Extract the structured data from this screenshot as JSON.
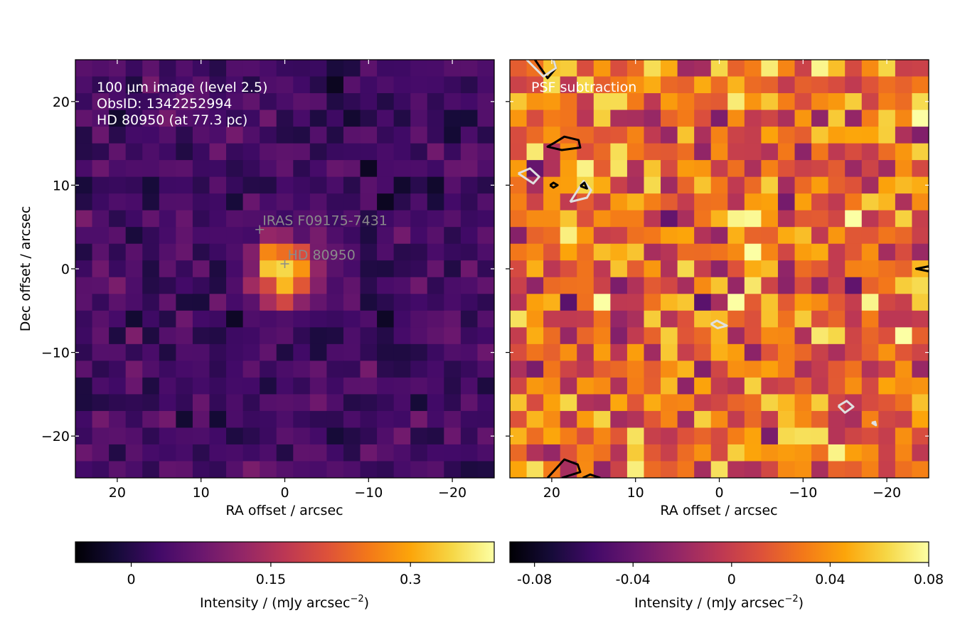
{
  "chart_data": [
    {
      "type": "heatmap",
      "panel": "left",
      "xlabel": "RA offset / arcsec",
      "ylabel": "Dec offset / arcsec",
      "xlim": [
        25,
        -25
      ],
      "ylim": [
        -25,
        25
      ],
      "xticks": [
        20,
        10,
        0,
        -10,
        -20
      ],
      "yticks": [
        20,
        10,
        0,
        -10,
        -20
      ],
      "grid": false,
      "pixel_size_arcsec": 2,
      "colormap": "inferno",
      "value_range": [
        -0.06,
        0.39
      ],
      "peak": {
        "x": 0,
        "y": 0,
        "value": 0.36
      },
      "annotations": [
        "100 µm image (level 2.5)",
        "ObsID: 1342252994",
        "HD 80950 (at 77.3 pc)"
      ],
      "markers": [
        {
          "label": "IRAS F09175-7431",
          "x": 3,
          "y": 4.7
        },
        {
          "label": "HD 80950",
          "x": 0,
          "y": 0.6
        }
      ],
      "colorbar": {
        "label_main": "Intensity / (mJy arcsec",
        "label_sup": "−2",
        "label_end": ")",
        "ticks": [
          0,
          0.15,
          0.3
        ],
        "tick_labels": [
          "0",
          "0.15",
          "0.3"
        ],
        "range": [
          -0.06,
          0.39
        ]
      }
    },
    {
      "type": "heatmap",
      "panel": "right",
      "xlabel": "RA offset / arcsec",
      "xlim": [
        25,
        -25
      ],
      "ylim": [
        -25,
        25
      ],
      "xticks": [
        20,
        10,
        0,
        -10,
        -20
      ],
      "grid": false,
      "pixel_size_arcsec": 2,
      "colormap": "inferno",
      "value_range": [
        -0.09,
        0.08
      ],
      "annotations": [
        "PSF subtraction"
      ],
      "contours": [
        {
          "color": "#000000",
          "points": [
            [
              22,
              25
            ],
            [
              20.5,
              22.8
            ],
            [
              19.5,
              24
            ],
            [
              19.8,
              25
            ]
          ]
        },
        {
          "color": "#e0e0e0",
          "points": [
            [
              23,
              25
            ],
            [
              21,
              23
            ],
            [
              19.5,
              24
            ],
            [
              19.8,
              25
            ]
          ]
        },
        {
          "color": "#000000",
          "points": [
            [
              19.8,
              15
            ],
            [
              18.5,
              15.8
            ],
            [
              16.8,
              15.4
            ],
            [
              16.6,
              14.5
            ],
            [
              18.8,
              14.2
            ],
            [
              20.5,
              14.6
            ],
            [
              19.8,
              15
            ]
          ]
        },
        {
          "color": "#e0e0e0",
          "points": [
            [
              24,
              11.4
            ],
            [
              22.6,
              12
            ],
            [
              21.5,
              11
            ],
            [
              22.2,
              10.2
            ],
            [
              24,
              11.4
            ]
          ]
        },
        {
          "color": "#000000",
          "points": [
            [
              20.2,
              10
            ],
            [
              19.8,
              10.3
            ],
            [
              19.3,
              10
            ],
            [
              19.8,
              9.7
            ],
            [
              20.2,
              10
            ]
          ]
        },
        {
          "color": "#e0e0e0",
          "points": [
            [
              17.8,
              8
            ],
            [
              16.2,
              10.5
            ],
            [
              15.3,
              9.4
            ],
            [
              15.8,
              8.5
            ],
            [
              17.8,
              8
            ]
          ]
        },
        {
          "color": "#000000",
          "points": [
            [
              16.6,
              9.9
            ],
            [
              16.1,
              10.3
            ],
            [
              15.8,
              9.6
            ],
            [
              16.6,
              9.9
            ]
          ]
        },
        {
          "color": "#000000",
          "points": [
            [
              -25,
              0.3
            ],
            [
              -23.5,
              0
            ],
            [
              -25,
              -0.3
            ]
          ]
        },
        {
          "color": "#e0e0e0",
          "points": [
            [
              1,
              -6.6
            ],
            [
              0.3,
              -6.2
            ],
            [
              -0.9,
              -6.8
            ],
            [
              0.2,
              -7.1
            ],
            [
              1,
              -6.6
            ]
          ]
        },
        {
          "color": "#e0e0e0",
          "points": [
            [
              -14.2,
              -16.4
            ],
            [
              -15.2,
              -15.8
            ],
            [
              -16,
              -16.5
            ],
            [
              -15,
              -17.2
            ],
            [
              -14.2,
              -16.4
            ]
          ]
        },
        {
          "color": "#e0e0e0",
          "points": [
            [
              -18.2,
              -18.4
            ],
            [
              -18.6,
              -18.3
            ],
            [
              -18.7,
              -18.7
            ],
            [
              -18.2,
              -18.4
            ]
          ]
        },
        {
          "color": "#000000",
          "points": [
            [
              20.5,
              -25
            ],
            [
              18.5,
              -22.8
            ],
            [
              16.9,
              -23.4
            ],
            [
              16.6,
              -24.3
            ],
            [
              18.8,
              -25
            ]
          ]
        },
        {
          "color": "#000000",
          "points": [
            [
              16.3,
              -25
            ],
            [
              15.4,
              -24.6
            ],
            [
              14.2,
              -25
            ]
          ]
        }
      ],
      "colorbar": {
        "label_main": "Intensity / (mJy arcsec",
        "label_sup": "−2",
        "label_end": ")",
        "ticks": [
          -0.08,
          -0.04,
          0,
          0.04,
          0.08
        ],
        "tick_labels": [
          "-0.08",
          "-0.04",
          "0",
          "0.04",
          "0.08"
        ],
        "range": [
          -0.09,
          0.08
        ]
      }
    }
  ]
}
